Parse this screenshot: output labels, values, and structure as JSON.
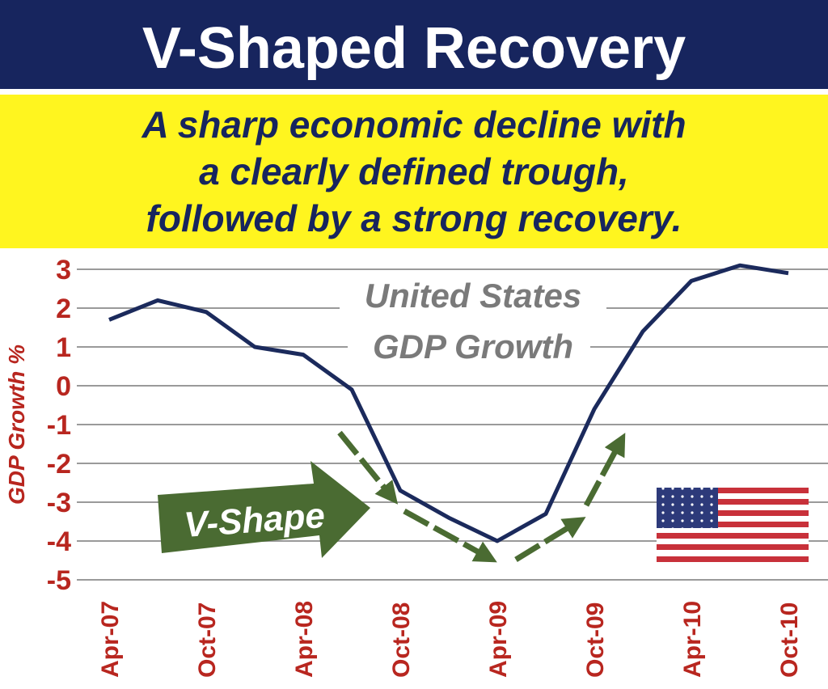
{
  "header": {
    "title": "V-Shaped Recovery",
    "subtitle": [
      "A sharp economic decline with",
      "a clearly defined trough,",
      "followed by a strong recovery."
    ]
  },
  "chart_data": {
    "type": "line",
    "y_label": "GDP Growth %",
    "annotations": [
      "United States",
      "GDP Growth",
      "V-Shape"
    ],
    "categories": [
      "Apr-07",
      null,
      "Oct-07",
      null,
      "Apr-08",
      null,
      "Oct-08",
      null,
      "Apr-09",
      null,
      "Oct-09",
      null,
      "Apr-10",
      null,
      "Oct-10"
    ],
    "series": [
      {
        "name": "United States GDP Growth",
        "color": "#1b2a5c",
        "values": [
          1.7,
          2.2,
          1.9,
          1.0,
          0.8,
          -0.1,
          -2.7,
          -3.4,
          -4.0,
          -3.3,
          -0.6,
          1.4,
          2.7,
          3.1,
          2.9
        ]
      }
    ],
    "ylim": [
      -5,
      3
    ],
    "yticks": [
      -5,
      -4,
      -3,
      -2,
      -1,
      0,
      1,
      2,
      3
    ],
    "grid": true
  }
}
